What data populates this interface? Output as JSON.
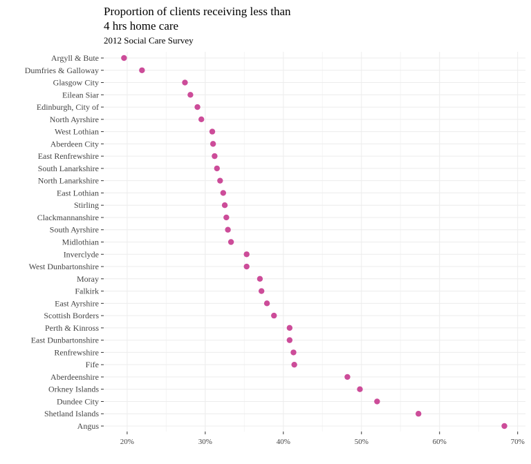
{
  "chart_data": {
    "type": "scatter",
    "title_lines": [
      "Proportion of clients receiving less than",
      "4 hrs home care"
    ],
    "subtitle": "2012 Social Care Survey",
    "xlabel": "",
    "ylabel": "",
    "xlim": [
      17,
      71
    ],
    "x_ticks": [
      20,
      30,
      40,
      50,
      60,
      70
    ],
    "x_tick_labels": [
      "20%",
      "30%",
      "40%",
      "50%",
      "60%",
      "70%"
    ],
    "grid": true,
    "point_color": "#cc4c99",
    "categories": [
      "Argyll & Bute",
      "Dumfries & Galloway",
      "Glasgow City",
      "Eilean Siar",
      "Edinburgh, City of",
      "North Ayrshire",
      "West Lothian",
      "Aberdeen City",
      "East Renfrewshire",
      "South Lanarkshire",
      "North Lanarkshire",
      "East Lothian",
      "Stirling",
      "Clackmannanshire",
      "South Ayrshire",
      "Midlothian",
      "Inverclyde",
      "West Dunbartonshire",
      "Moray",
      "Falkirk",
      "East Ayrshire",
      "Scottish Borders",
      "Perth & Kinross",
      "East Dunbartonshire",
      "Renfrewshire",
      "Fife",
      "Aberdeenshire",
      "Orkney Islands",
      "Dundee City",
      "Shetland Islands",
      "Angus"
    ],
    "values": [
      19.6,
      21.9,
      27.4,
      28.1,
      29.0,
      29.5,
      30.9,
      31.0,
      31.2,
      31.5,
      31.9,
      32.3,
      32.5,
      32.7,
      32.9,
      33.3,
      35.3,
      35.3,
      37.0,
      37.2,
      37.9,
      38.8,
      40.8,
      40.8,
      41.3,
      41.4,
      48.2,
      49.8,
      52.0,
      57.3,
      68.3
    ]
  }
}
